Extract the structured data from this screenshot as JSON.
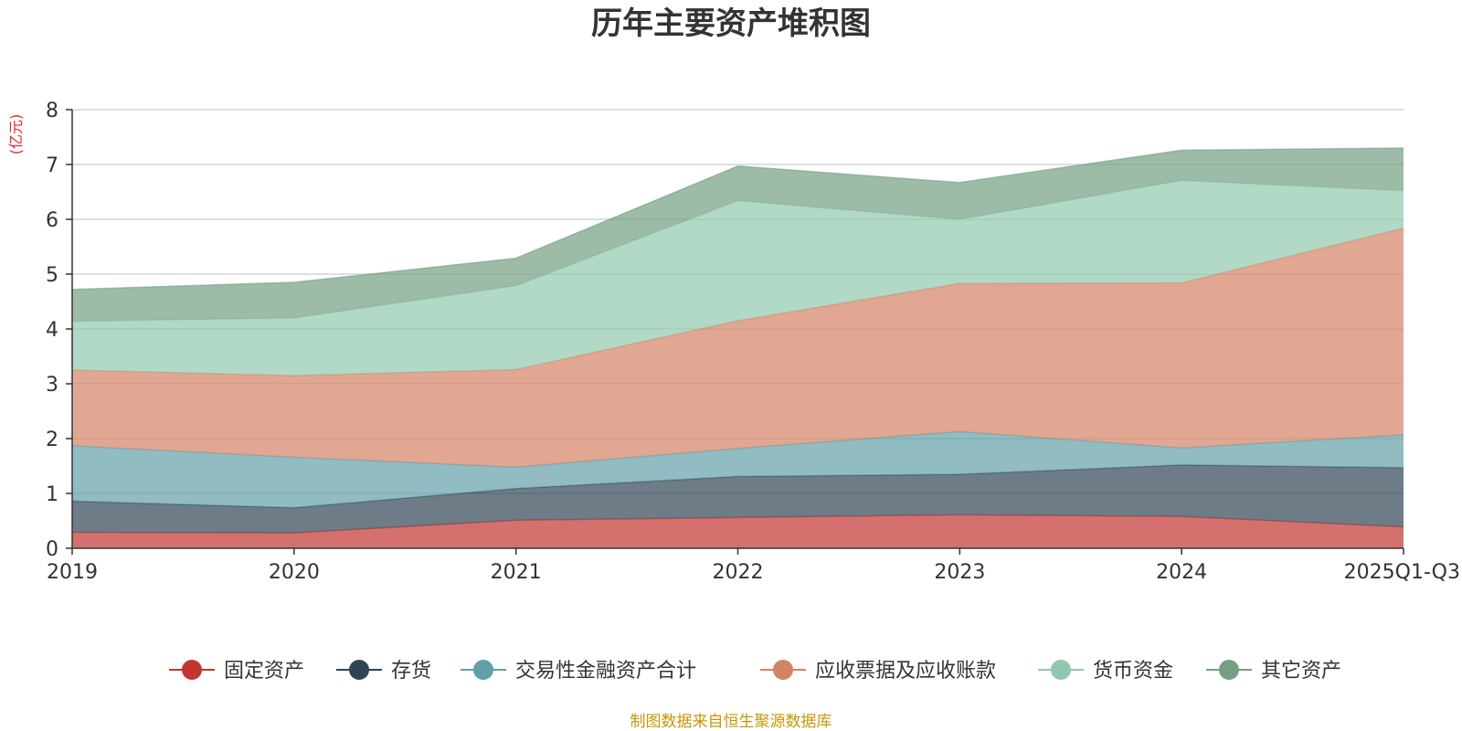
{
  "chart_data": {
    "type": "area",
    "stacked": true,
    "title": "历年主要资产堆积图",
    "unit": "(亿元)",
    "xlabel": "",
    "ylabel": "(亿元)",
    "ylim": [
      0,
      8
    ],
    "yticks": [
      0,
      1,
      2,
      3,
      4,
      5,
      6,
      7,
      8
    ],
    "grid": true,
    "legend_position": "bottom",
    "categories": [
      "2019",
      "2020",
      "2021",
      "2022",
      "2023",
      "2024",
      "2025Q1-Q3"
    ],
    "series": [
      {
        "name": "固定资产",
        "color": "#c23531",
        "values": [
          0.29,
          0.28,
          0.51,
          0.56,
          0.61,
          0.58,
          0.39
        ]
      },
      {
        "name": "存货",
        "color": "#2f4554",
        "values": [
          0.57,
          0.46,
          0.58,
          0.75,
          0.74,
          0.94,
          1.08
        ]
      },
      {
        "name": "交易性金融资产合计",
        "color": "#61a0a8",
        "values": [
          1.01,
          0.92,
          0.39,
          0.51,
          0.78,
          0.31,
          0.6
        ]
      },
      {
        "name": "应收票据及应收账款",
        "color": "#d48265",
        "values": [
          1.38,
          1.49,
          1.78,
          2.33,
          2.7,
          3.01,
          3.77
        ]
      },
      {
        "name": "货币资金",
        "color": "#91c7ae",
        "values": [
          0.89,
          1.05,
          1.53,
          2.19,
          1.17,
          1.87,
          0.68
        ]
      },
      {
        "name": "其它资产",
        "color": "#749f83",
        "values": [
          0.58,
          0.65,
          0.5,
          0.63,
          0.67,
          0.55,
          0.78
        ]
      }
    ],
    "source": "制图数据来自恒生聚源数据库"
  }
}
